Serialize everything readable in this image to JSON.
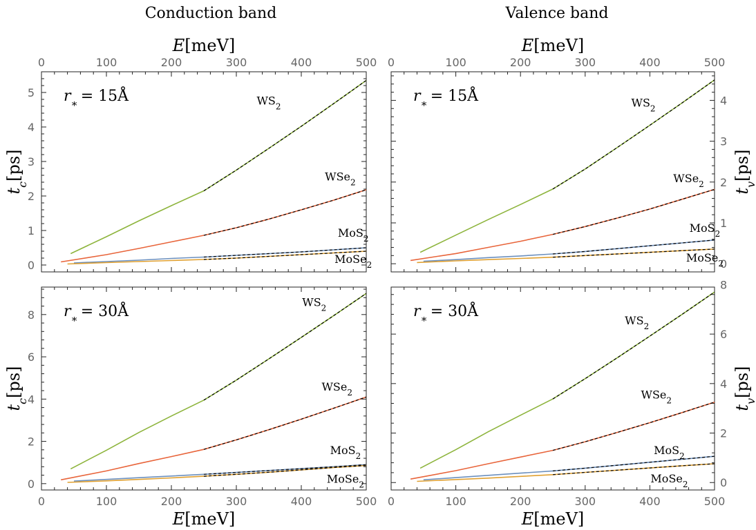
{
  "titles": {
    "left": "Conduction band",
    "right": "Valence band"
  },
  "axis_text": {
    "x": "E[meV]",
    "y_left": "t_c[ps]",
    "y_right": "t_v[ps]"
  },
  "colors": {
    "WS2": "#8db43c",
    "WSe2": "#e8643a",
    "MoS2": "#6b8fbd",
    "MoSe2": "#e0a030",
    "fit": "#000000"
  },
  "chart_data": [
    {
      "type": "line",
      "panel": "top-left",
      "annotation": "r* = 15Å",
      "xlim": [
        0,
        500
      ],
      "ylim": [
        -0.2,
        5.6
      ],
      "yticks": [
        0,
        1,
        2,
        3,
        4,
        5
      ],
      "xticks": [
        0,
        100,
        200,
        300,
        400,
        500
      ],
      "y_axis_side": "left",
      "x_labels": "top",
      "series": [
        {
          "name": "WS2",
          "x": [
            45,
            100,
            150,
            200,
            250,
            300,
            350,
            400,
            450,
            500
          ],
          "y": [
            0.33,
            0.82,
            1.28,
            1.72,
            2.15,
            2.75,
            3.38,
            4.02,
            4.68,
            5.35
          ],
          "fit_from": 250,
          "label_at": [
            350,
            4.65
          ]
        },
        {
          "name": "WSe2",
          "x": [
            30,
            100,
            150,
            200,
            250,
            300,
            350,
            400,
            450,
            500
          ],
          "y": [
            0.09,
            0.3,
            0.48,
            0.67,
            0.86,
            1.08,
            1.33,
            1.6,
            1.88,
            2.18
          ],
          "fit_from": 250,
          "label_at": [
            460,
            2.45
          ]
        },
        {
          "name": "MoS2",
          "x": [
            50,
            100,
            150,
            200,
            250,
            300,
            350,
            400,
            450,
            500
          ],
          "y": [
            0.06,
            0.1,
            0.14,
            0.19,
            0.23,
            0.28,
            0.33,
            0.38,
            0.44,
            0.5
          ],
          "fit_from": 250,
          "label_at": [
            480,
            0.82
          ]
        },
        {
          "name": "MoSe2",
          "x": [
            40,
            100,
            150,
            200,
            250,
            300,
            350,
            400,
            450,
            500
          ],
          "y": [
            0.03,
            0.07,
            0.1,
            0.13,
            0.16,
            0.2,
            0.25,
            0.3,
            0.35,
            0.4
          ],
          "fit_from": 250,
          "label_at": [
            480,
            0.06
          ]
        }
      ]
    },
    {
      "type": "line",
      "panel": "top-right",
      "annotation": "r* = 15Å",
      "xlim": [
        0,
        500
      ],
      "ylim": [
        -0.2,
        4.7
      ],
      "yticks": [
        0,
        1,
        2,
        3,
        4
      ],
      "xticks": [
        0,
        100,
        200,
        300,
        400,
        500
      ],
      "y_axis_side": "right",
      "x_labels": "top",
      "series": [
        {
          "name": "WS2",
          "x": [
            45,
            100,
            150,
            200,
            250,
            300,
            350,
            400,
            450,
            500
          ],
          "y": [
            0.28,
            0.7,
            1.08,
            1.45,
            1.83,
            2.32,
            2.85,
            3.39,
            3.94,
            4.5
          ],
          "fit_from": 250,
          "label_at": [
            390,
            3.85
          ]
        },
        {
          "name": "WSe2",
          "x": [
            30,
            100,
            150,
            200,
            250,
            300,
            350,
            400,
            450,
            500
          ],
          "y": [
            0.08,
            0.25,
            0.4,
            0.55,
            0.72,
            0.91,
            1.12,
            1.34,
            1.58,
            1.82
          ],
          "fit_from": 250,
          "label_at": [
            460,
            2.0
          ]
        },
        {
          "name": "MoS2",
          "x": [
            50,
            100,
            150,
            200,
            250,
            300,
            350,
            400,
            450,
            500
          ],
          "y": [
            0.06,
            0.1,
            0.15,
            0.19,
            0.24,
            0.3,
            0.37,
            0.44,
            0.51,
            0.58
          ],
          "fit_from": 250,
          "label_at": [
            485,
            0.78
          ]
        },
        {
          "name": "MoSe2",
          "x": [
            40,
            100,
            150,
            200,
            250,
            300,
            350,
            400,
            450,
            500
          ],
          "y": [
            0.03,
            0.07,
            0.1,
            0.13,
            0.16,
            0.2,
            0.24,
            0.28,
            0.32,
            0.36
          ],
          "fit_from": 250,
          "label_at": [
            485,
            0.05
          ]
        }
      ]
    },
    {
      "type": "line",
      "panel": "bottom-left",
      "annotation": "r* = 30Å",
      "xlim": [
        0,
        500
      ],
      "ylim": [
        -0.3,
        9.3
      ],
      "yticks": [
        0,
        2,
        4,
        6,
        8
      ],
      "xticks": [
        0,
        100,
        200,
        300,
        400,
        500
      ],
      "y_axis_side": "left",
      "x_labels": "bottom",
      "series": [
        {
          "name": "WS2",
          "x": [
            45,
            100,
            150,
            200,
            250,
            300,
            350,
            400,
            450,
            500
          ],
          "y": [
            0.7,
            1.58,
            2.42,
            3.2,
            3.95,
            4.9,
            5.9,
            6.92,
            7.95,
            9.0
          ],
          "fit_from": 250,
          "label_at": [
            420,
            8.4
          ]
        },
        {
          "name": "WSe2",
          "x": [
            30,
            100,
            150,
            200,
            250,
            300,
            350,
            400,
            450,
            500
          ],
          "y": [
            0.18,
            0.6,
            0.95,
            1.28,
            1.62,
            2.07,
            2.55,
            3.05,
            3.57,
            4.1
          ],
          "fit_from": 250,
          "label_at": [
            455,
            4.4
          ]
        },
        {
          "name": "MoS2",
          "x": [
            50,
            100,
            150,
            200,
            250,
            300,
            350,
            400,
            450,
            500
          ],
          "y": [
            0.12,
            0.2,
            0.28,
            0.36,
            0.44,
            0.53,
            0.62,
            0.71,
            0.8,
            0.9
          ],
          "fit_from": 250,
          "label_at": [
            468,
            1.4
          ]
        },
        {
          "name": "MoSe2",
          "x": [
            40,
            100,
            150,
            200,
            250,
            300,
            350,
            400,
            450,
            500
          ],
          "y": [
            0.06,
            0.13,
            0.2,
            0.27,
            0.35,
            0.44,
            0.54,
            0.65,
            0.76,
            0.86
          ],
          "fit_from": 250,
          "label_at": [
            468,
            0.05
          ]
        }
      ]
    },
    {
      "type": "line",
      "panel": "bottom-right",
      "annotation": "r* = 30Å",
      "xlim": [
        0,
        500
      ],
      "ylim": [
        -0.3,
        7.9
      ],
      "yticks": [
        0,
        2,
        4,
        6,
        8
      ],
      "xticks": [
        0,
        100,
        200,
        300,
        400,
        500
      ],
      "y_axis_side": "right",
      "x_labels": "bottom",
      "series": [
        {
          "name": "WS2",
          "x": [
            45,
            100,
            150,
            200,
            250,
            300,
            350,
            400,
            450,
            500
          ],
          "y": [
            0.58,
            1.33,
            2.05,
            2.72,
            3.38,
            4.2,
            5.05,
            5.92,
            6.8,
            7.7
          ],
          "fit_from": 250,
          "label_at": [
            380,
            6.4
          ]
        },
        {
          "name": "WSe2",
          "x": [
            30,
            100,
            150,
            200,
            250,
            300,
            350,
            400,
            450,
            500
          ],
          "y": [
            0.14,
            0.48,
            0.76,
            1.03,
            1.3,
            1.65,
            2.03,
            2.42,
            2.83,
            3.25
          ],
          "fit_from": 250,
          "label_at": [
            410,
            3.4
          ]
        },
        {
          "name": "MoS2",
          "x": [
            50,
            100,
            150,
            200,
            250,
            300,
            350,
            400,
            450,
            500
          ],
          "y": [
            0.11,
            0.2,
            0.29,
            0.38,
            0.47,
            0.58,
            0.7,
            0.82,
            0.94,
            1.06
          ],
          "fit_from": 250,
          "label_at": [
            430,
            1.15
          ]
        },
        {
          "name": "MoSe2",
          "x": [
            40,
            100,
            150,
            200,
            250,
            300,
            350,
            400,
            450,
            500
          ],
          "y": [
            0.05,
            0.12,
            0.18,
            0.25,
            0.32,
            0.41,
            0.5,
            0.59,
            0.68,
            0.76
          ],
          "fit_from": 250,
          "label_at": [
            430,
            0.0
          ]
        }
      ]
    }
  ]
}
